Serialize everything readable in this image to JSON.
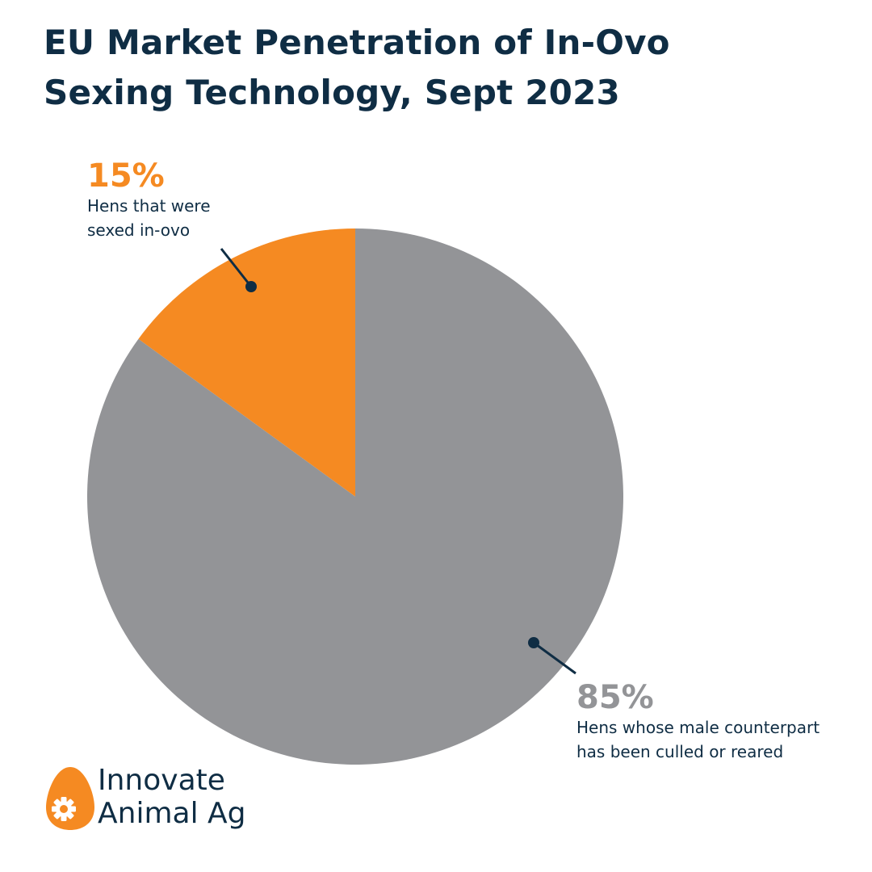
{
  "title_lines": [
    "EU Market Penetration of In-Ovo",
    "Sexing Technology, Sept 2023"
  ],
  "chart_data": {
    "type": "pie",
    "title": "EU Market Penetration of In-Ovo Sexing Technology, Sept 2023",
    "slices": [
      {
        "value": 15,
        "label": "15%",
        "description_lines": [
          "Hens that were",
          "sexed in-ovo"
        ],
        "color": "#f58a22"
      },
      {
        "value": 85,
        "label": "85%",
        "description_lines": [
          "Hens whose male counterpart",
          "has been culled or reared"
        ],
        "color": "#939497"
      }
    ]
  },
  "colors": {
    "title": "#0f2d44",
    "accent_orange": "#f58a22",
    "slice_gray": "#939497",
    "leader_line": "#0f2d44"
  },
  "logo": {
    "lines": [
      "Innovate",
      "Animal Ag"
    ],
    "icon": "egg-gear-icon"
  }
}
